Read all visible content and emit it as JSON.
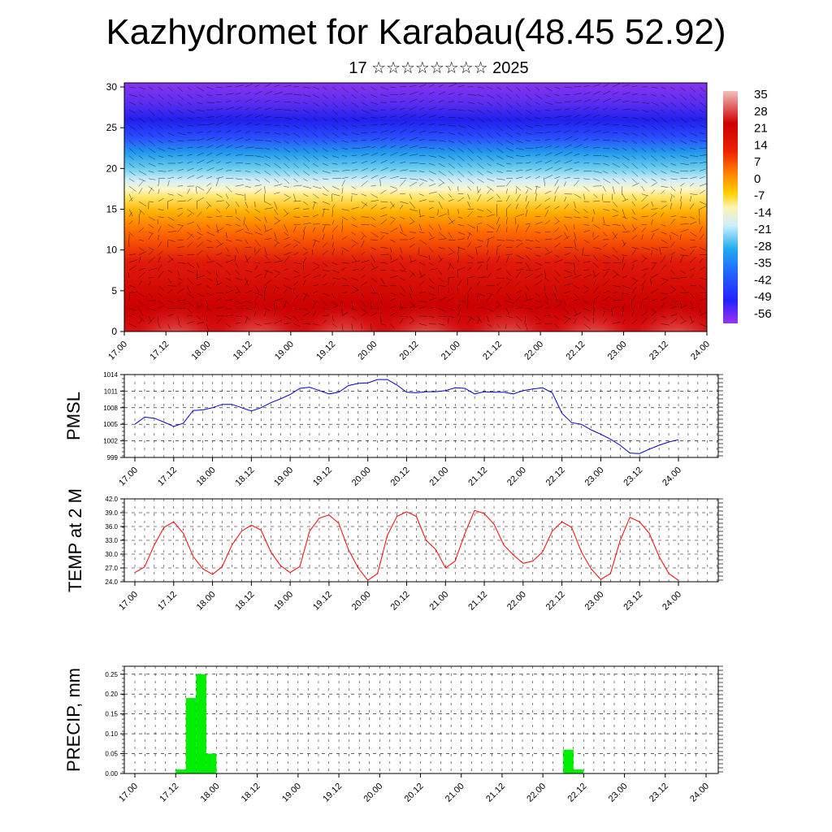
{
  "title": "Kazhydromet for Karabau(48.45 52.92)",
  "subtitle": "17 ☆☆☆☆☆☆☆☆ 2025",
  "colorbar_labels": [
    "35",
    "28",
    "21",
    "14",
    "7",
    "0",
    "-7",
    "-14",
    "-21",
    "-28",
    "-35",
    "-42",
    "-49",
    "-56"
  ],
  "chart_data": [
    {
      "type": "heatmap",
      "description_variable": "temperature cross-section with wind vectors",
      "x_ticks": [
        "17.00",
        "17.12",
        "18.00",
        "18.12",
        "19.00",
        "19.12",
        "20.00",
        "20.12",
        "21.00",
        "21.12",
        "22.00",
        "22.12",
        "23.00",
        "23.12",
        "24.00"
      ],
      "y_ticks": [
        "0",
        "5",
        "10",
        "15",
        "20",
        "25",
        "30"
      ],
      "ylim": [
        0,
        30.5
      ],
      "colorbar": [
        "35",
        "28",
        "21",
        "14",
        "7",
        "0",
        "-7",
        "-14",
        "-21",
        "-28",
        "-35",
        "-42",
        "-49",
        "-56"
      ],
      "colors": {
        "warm": "#cc0000",
        "hot": "#f2b8b8",
        "orange": "#ff8c00",
        "yellow": "#ffe066",
        "cyan": "#33bbee",
        "blue": "#2222ff",
        "violet": "#8833ee"
      }
    },
    {
      "type": "line",
      "ylabel": "PMSL",
      "ylim": [
        999,
        1014
      ],
      "y_ticks": [
        "999",
        "1002",
        "1005",
        "1008",
        "1011",
        "1014"
      ],
      "x_ticks": [
        "17.00",
        "17.12",
        "18.00",
        "18.12",
        "19.00",
        "19.12",
        "20.00",
        "20.12",
        "21.00",
        "21.12",
        "22.00",
        "22.12",
        "23.00",
        "23.12",
        "24.00"
      ],
      "color": "#0000cc",
      "values": [
        1005.0,
        1006.3,
        1006.1,
        1005.4,
        1004.6,
        1005.2,
        1007.5,
        1007.6,
        1008.0,
        1008.6,
        1008.6,
        1008.0,
        1007.4,
        1008.0,
        1008.9,
        1009.6,
        1010.4,
        1011.5,
        1011.7,
        1011.1,
        1010.5,
        1010.8,
        1012.0,
        1012.4,
        1012.5,
        1013.1,
        1013.1,
        1012.1,
        1010.8,
        1010.7,
        1010.9,
        1010.9,
        1011.1,
        1011.6,
        1011.5,
        1010.5,
        1010.9,
        1010.8,
        1010.8,
        1010.5,
        1011.1,
        1011.4,
        1011.6,
        1010.7,
        1007.0,
        1005.3,
        1005.0,
        1004.0,
        1003.2,
        1002.3,
        1001.2,
        999.8,
        999.7,
        1000.5,
        1001.2,
        1001.8,
        1002.2
      ]
    },
    {
      "type": "line",
      "ylabel": "TEMP at 2 M",
      "ylim": [
        24.0,
        42.0
      ],
      "y_ticks": [
        "24.0",
        "27.0",
        "30.0",
        "33.0",
        "36.0",
        "39.0",
        "42.0"
      ],
      "x_ticks": [
        "17.00",
        "17.12",
        "18.00",
        "18.12",
        "19.00",
        "19.12",
        "20.00",
        "20.12",
        "21.00",
        "21.12",
        "22.00",
        "22.12",
        "23.00",
        "23.12",
        "24.00"
      ],
      "color": "#ff0000",
      "values": [
        26.0,
        27.2,
        32.0,
        35.8,
        37.0,
        34.5,
        29.5,
        26.8,
        25.6,
        27.3,
        32.0,
        35.0,
        36.3,
        35.2,
        30.5,
        27.5,
        26.0,
        27.3,
        35.0,
        37.8,
        38.5,
        36.7,
        31.0,
        27.0,
        24.3,
        25.8,
        34.0,
        38.2,
        39.2,
        38.2,
        33.0,
        31.0,
        27.0,
        28.5,
        34.5,
        39.5,
        38.8,
        36.5,
        32.0,
        29.8,
        28.0,
        28.5,
        30.5,
        35.0,
        37.0,
        35.8,
        30.5,
        26.8,
        24.5,
        25.8,
        33.0,
        38.0,
        37.0,
        34.5,
        29.5,
        25.8,
        24.3
      ]
    },
    {
      "type": "bar",
      "ylabel": "PRECIP, mm",
      "ylim": [
        0,
        0.27
      ],
      "y_ticks": [
        "0.00",
        "0.05",
        "0.10",
        "0.15",
        "0.20",
        "0.25"
      ],
      "x_ticks": [
        "17.00",
        "17.12",
        "18.00",
        "18.12",
        "19.00",
        "19.12",
        "20.00",
        "20.12",
        "21.00",
        "21.12",
        "22.00",
        "22.12",
        "23.00",
        "23.12",
        "24.00"
      ],
      "color": "#00ee00",
      "bars": [
        {
          "x_hours": 15,
          "value": 0.01
        },
        {
          "x_hours": 18,
          "value": 0.19
        },
        {
          "x_hours": 21,
          "value": 0.25
        },
        {
          "x_hours": 24,
          "value": 0.05
        },
        {
          "x_hours": 129,
          "value": 0.06
        },
        {
          "x_hours": 132,
          "value": 0.01
        }
      ]
    }
  ]
}
